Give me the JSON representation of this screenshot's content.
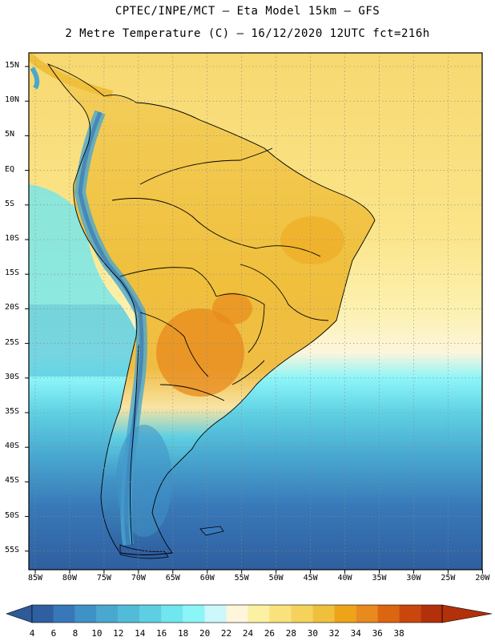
{
  "title_line1": "CPTEC/INPE/MCT –  Eta Model 15km – GFS",
  "title_line2": "2 Metre Temperature (C) – 16/12/2020 12UTC fct=216h",
  "lat_labels": [
    "15N",
    "10N",
    "5N",
    "EQ",
    "5S",
    "10S",
    "15S",
    "20S",
    "25S",
    "30S",
    "35S",
    "40S",
    "45S",
    "50S",
    "55S"
  ],
  "lon_labels": [
    "85W",
    "80W",
    "75W",
    "70W",
    "65W",
    "60W",
    "55W",
    "50W",
    "45W",
    "40W",
    "35W",
    "30W",
    "25W",
    "20W"
  ],
  "colorbar": {
    "labels": [
      "4",
      "6",
      "8",
      "10",
      "12",
      "14",
      "16",
      "18",
      "20",
      "22",
      "24",
      "26",
      "28",
      "30",
      "32",
      "34",
      "36",
      "38"
    ],
    "colors": [
      "#2f5fa0",
      "#3878b8",
      "#3f92c6",
      "#48a8d0",
      "#52bcd8",
      "#5ecfe2",
      "#70e6ee",
      "#8cf5f8",
      "#ccf7fb",
      "#fdf5dc",
      "#fcf1a2",
      "#f9e27c",
      "#f5d25c",
      "#f0bf3c",
      "#eda418",
      "#e88a1c",
      "#dc6510",
      "#c9460c",
      "#b2300a"
    ],
    "under_color": "#2d5a98",
    "over_color": "#b2300a"
  },
  "map": {
    "projection": "lat-lon",
    "lon_range": [
      "85W",
      "20W"
    ],
    "lat_range": [
      "17N",
      "58S"
    ],
    "grid": "dotted",
    "ocean_north_color": "#f9e27c",
    "ocean_south_color": "#52bcd8"
  }
}
